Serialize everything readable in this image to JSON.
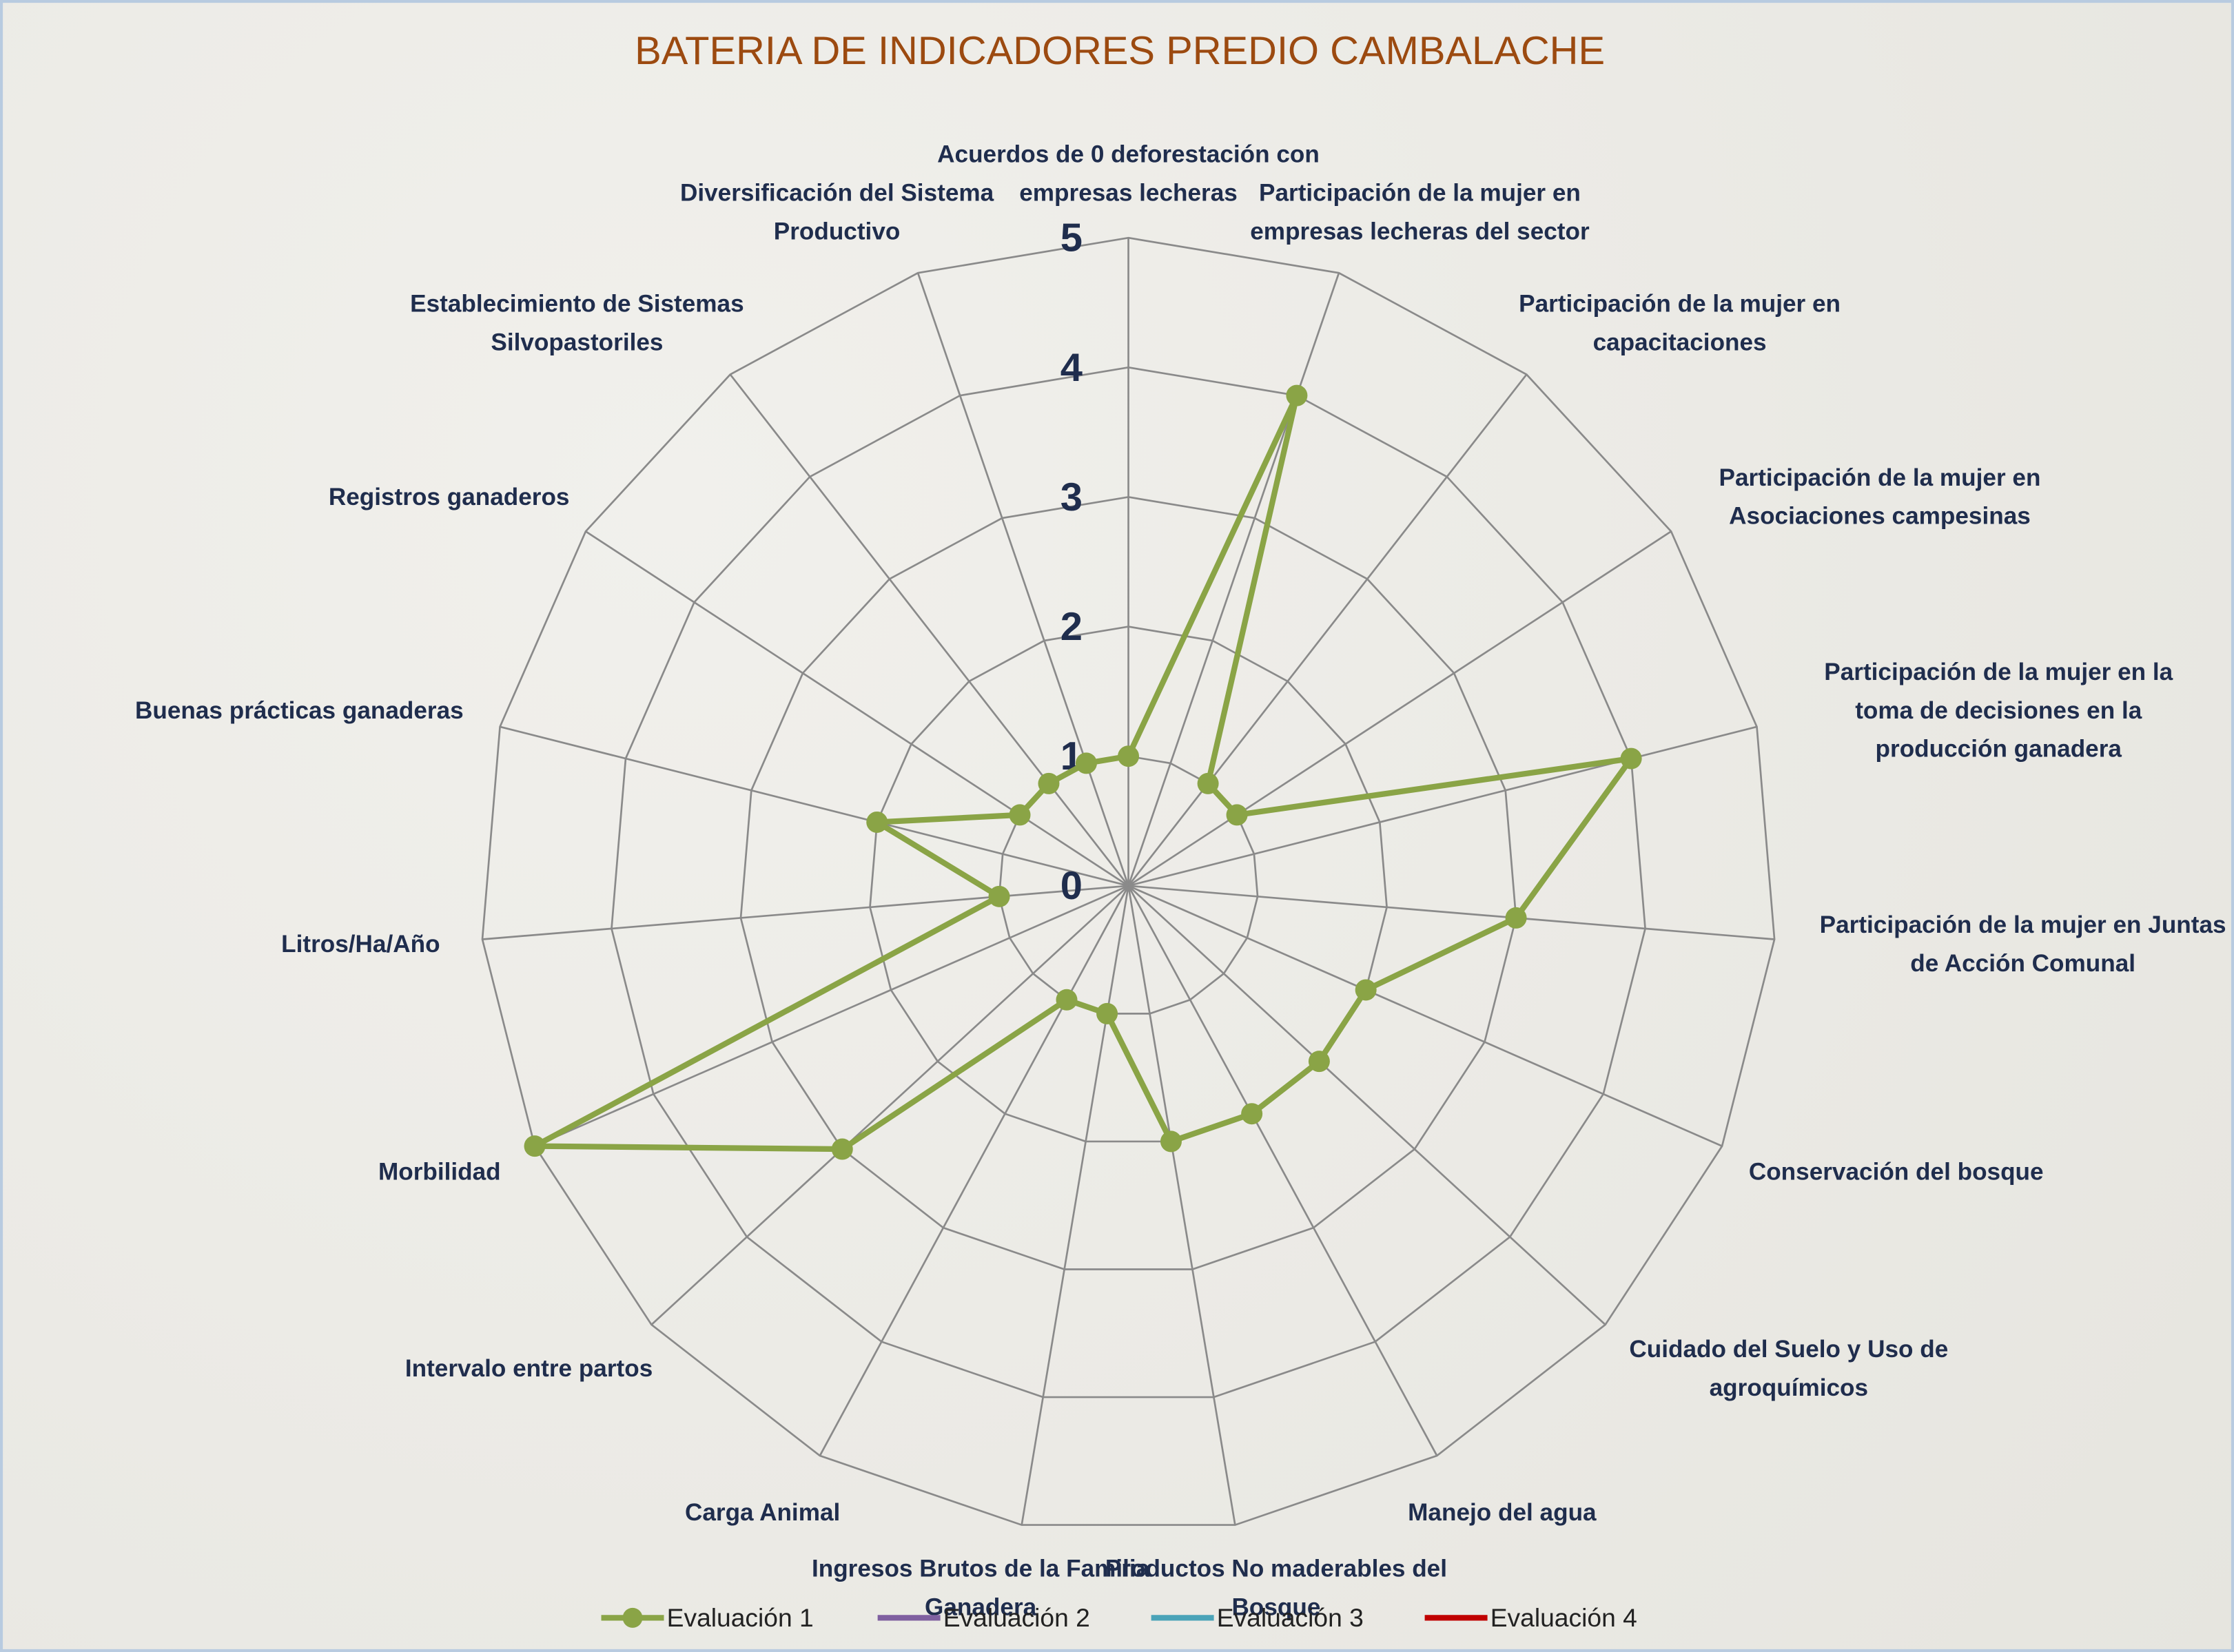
{
  "chart_data": {
    "type": "radar",
    "title": "BATERIA DE INDICADORES PREDIO CAMBALACHE",
    "categories": [
      "Acuerdos de 0 deforestación con empresas lecheras",
      "Participación de la mujer en empresas lecheras del sector",
      "Participación de la mujer en capacitaciones",
      "Participación de la mujer en Asociaciones campesinas",
      "Participación de la mujer en la toma de decisiones en la producción ganadera",
      "Participación de la mujer en Juntas de Acción Comunal",
      "Conservación del bosque",
      "Cuidado del Suelo y Uso de agroquímicos",
      "Manejo del agua",
      "Productos No maderables del Bosque",
      "Ingresos Brutos de la Familia Ganadera",
      "Carga Animal",
      "Intervalo entre partos",
      "Morbilidad",
      "Litros/Ha/Año",
      "Buenas prácticas ganaderas",
      "Registros ganaderos",
      "Establecimiento de Sistemas Silvopastoriles",
      "Diversificación del Sistema Productivo"
    ],
    "series": [
      {
        "name": "Evaluación 1",
        "color": "#8aa446",
        "values": [
          1,
          4,
          1,
          1,
          4,
          3,
          2,
          2,
          2,
          2,
          1,
          1,
          3,
          5,
          1,
          2,
          1,
          1,
          1
        ]
      },
      {
        "name": "Evaluación 2",
        "color": "#7f60a0",
        "values": [
          null,
          null,
          null,
          null,
          null,
          null,
          null,
          null,
          null,
          null,
          null,
          null,
          null,
          null,
          null,
          null,
          null,
          null,
          null
        ]
      },
      {
        "name": "Evaluación 3",
        "color": "#4aa3b8",
        "values": [
          null,
          null,
          null,
          null,
          null,
          null,
          null,
          null,
          null,
          null,
          null,
          null,
          null,
          null,
          null,
          null,
          null,
          null,
          null
        ]
      },
      {
        "name": "Evaluación 4",
        "color": "#c00000",
        "values": [
          null,
          null,
          null,
          null,
          null,
          null,
          null,
          null,
          null,
          null,
          null,
          null,
          null,
          null,
          null,
          null,
          null,
          null,
          null
        ]
      }
    ],
    "ylim": [
      0,
      5
    ],
    "yticks": [
      0,
      1,
      2,
      3,
      4,
      5
    ],
    "grid": true,
    "legend": "bottom"
  }
}
